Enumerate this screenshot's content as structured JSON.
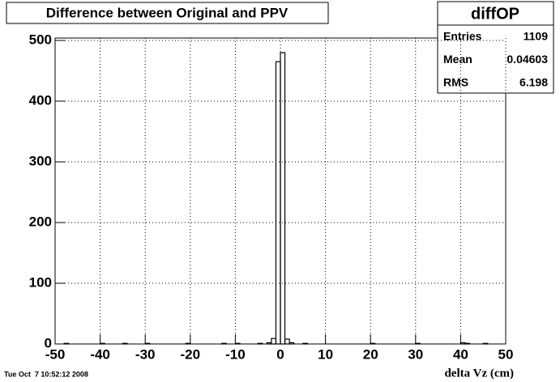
{
  "chart_data": {
    "type": "histogram",
    "title": "Difference between Original and PPV",
    "x_label": "delta Vz (cm)",
    "timestamp": "Tue Oct  7 10:52:12 2008",
    "stats": {
      "name": "diffOP",
      "rows": [
        {
          "label": "Entries",
          "value": 1109
        },
        {
          "label": "Mean",
          "value": 0.04603
        },
        {
          "label": "RMS",
          "value": 6.198
        }
      ]
    },
    "bins": [
      -50,
      -49,
      -48,
      -47,
      -46,
      -45,
      -44,
      -43,
      -42,
      -41,
      -40,
      -39,
      -38,
      -37,
      -36,
      -35,
      -34,
      -33,
      -32,
      -31,
      -30,
      -29,
      -28,
      -27,
      -26,
      -25,
      -24,
      -23,
      -22,
      -21,
      -20,
      -19,
      -18,
      -17,
      -16,
      -15,
      -14,
      -13,
      -12,
      -11,
      -10,
      -9,
      -8,
      -7,
      -6,
      -5,
      -4,
      -3,
      -2,
      -1,
      0,
      1,
      2,
      3,
      4,
      5,
      6,
      7,
      8,
      9,
      10,
      11,
      12,
      13,
      14,
      15,
      16,
      17,
      18,
      19,
      20,
      21,
      22,
      23,
      24,
      25,
      26,
      27,
      28,
      29,
      30,
      31,
      32,
      33,
      34,
      35,
      36,
      37,
      38,
      39,
      40,
      41,
      42,
      43,
      44,
      45,
      46,
      47,
      48,
      49,
      50
    ],
    "values": [
      0,
      0,
      1,
      0,
      0,
      0,
      0,
      0,
      0,
      0,
      1,
      0,
      0,
      0,
      0,
      1,
      0,
      0,
      0,
      0,
      1,
      0,
      0,
      0,
      0,
      0,
      0,
      0,
      0,
      1,
      0,
      0,
      0,
      0,
      0,
      0,
      0,
      1,
      0,
      0,
      1,
      0,
      0,
      0,
      0,
      1,
      0,
      2,
      9,
      465,
      480,
      8,
      2,
      0,
      0,
      1,
      0,
      0,
      0,
      0,
      0,
      0,
      0,
      0,
      0,
      0,
      0,
      0,
      0,
      0,
      1,
      0,
      0,
      0,
      0,
      0,
      0,
      0,
      0,
      0,
      1,
      0,
      0,
      0,
      0,
      0,
      0,
      0,
      0,
      0,
      2,
      1,
      0,
      0,
      0,
      1,
      0,
      0,
      0,
      0
    ],
    "color": "#000000",
    "xlim": [
      -50,
      50
    ],
    "xticks": [
      -50,
      -40,
      -30,
      -20,
      -10,
      0,
      10,
      20,
      30,
      40,
      50
    ],
    "ylim": [
      0,
      504
    ],
    "yticks": [
      0,
      100,
      200,
      300,
      400,
      500
    ],
    "grid": true
  }
}
